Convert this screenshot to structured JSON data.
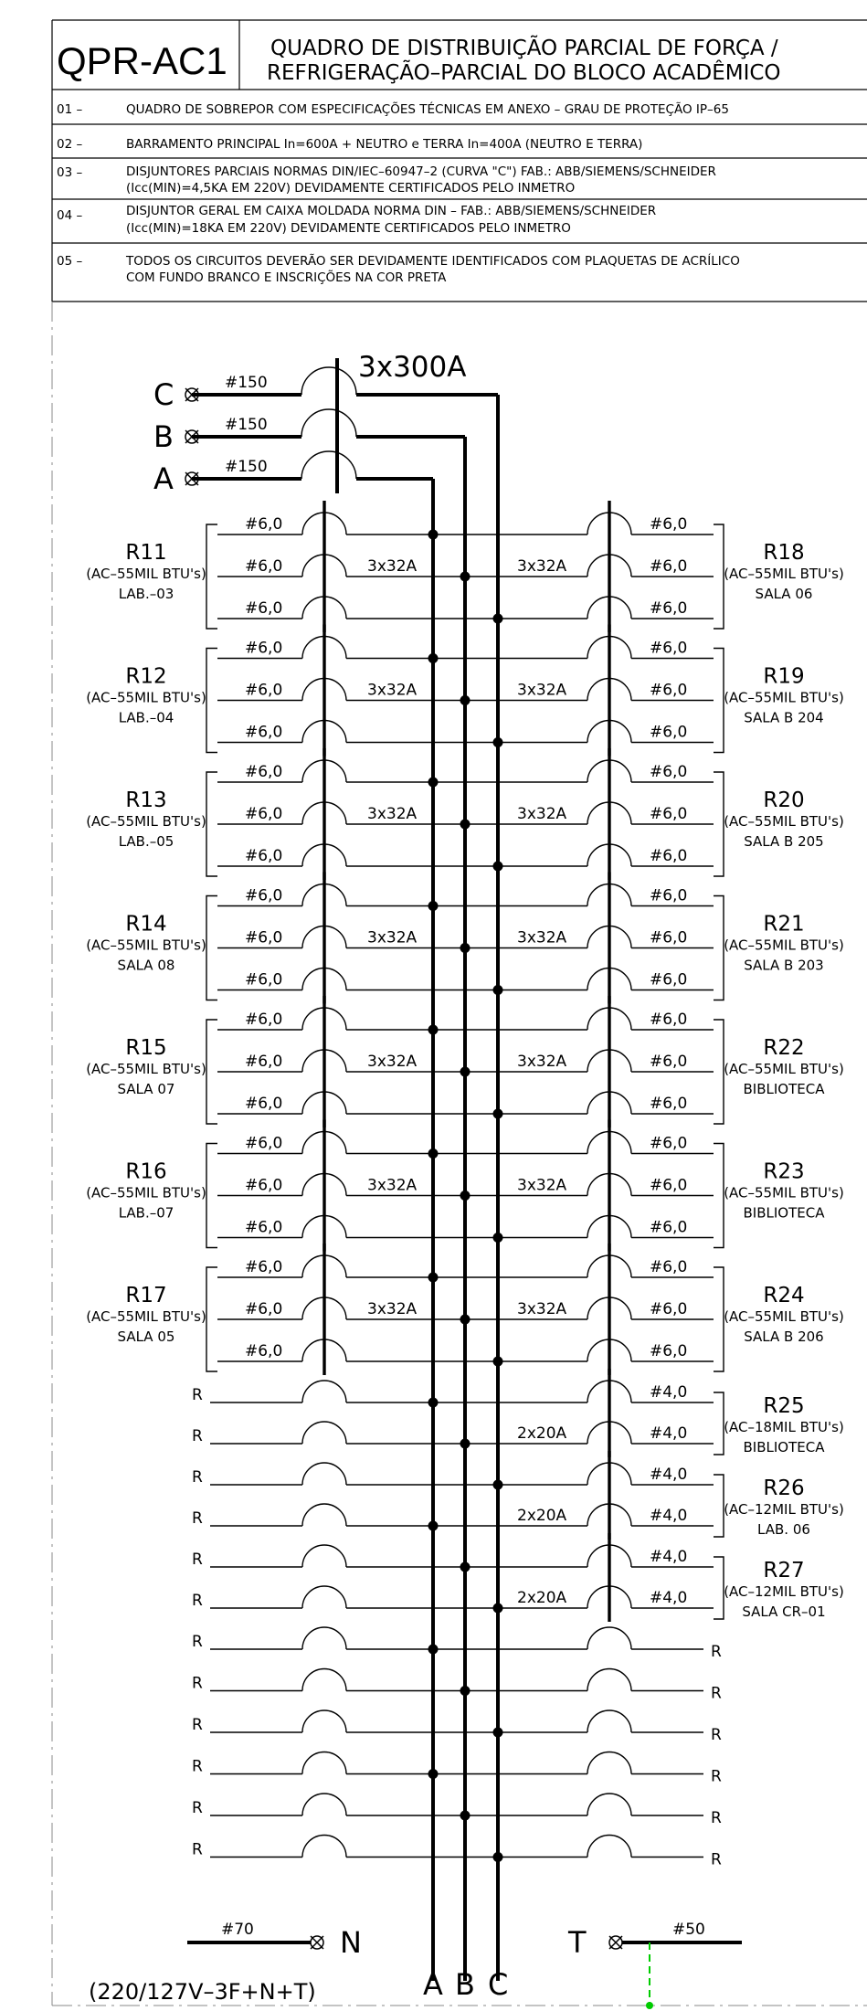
{
  "header": {
    "code": "QPR-AC1",
    "title_line1": "QUADRO DE DISTRIBUIÇÃO PARCIAL DE FORÇA /",
    "title_line2": "REFRIGERAÇÃO–PARCIAL DO BLOCO ACADÊMICO"
  },
  "notes": [
    {
      "num": "01 –",
      "lines": [
        "QUADRO DE SOBREPOR COM ESPECIFICAÇÕES TÉCNICAS EM ANEXO – GRAU DE PROTEÇÃO IP–65"
      ]
    },
    {
      "num": "02 –",
      "lines": [
        "BARRAMENTO PRINCIPAL In=600A + NEUTRO e TERRA In=400A (NEUTRO E TERRA)"
      ]
    },
    {
      "num": "03 –",
      "lines": [
        "DISJUNTORES PARCIAIS NORMAS DIN/IEC–60947–2 (CURVA \"C\") FAB.: ABB/SIEMENS/SCHNEIDER",
        "(Icc(MIN)=4,5KA EM 220V) DEVIDAMENTE CERTIFICADOS PELO INMETRO"
      ]
    },
    {
      "num": "04 –",
      "lines": [
        "DISJUNTOR GERAL EM CAIXA MOLDADA NORMA DIN – FAB.: ABB/SIEMENS/SCHNEIDER",
        "(Icc(MIN)=18KA EM 220V) DEVIDAMENTE CERTIFICADOS PELO INMETRO"
      ]
    },
    {
      "num": "05 –",
      "lines": [
        "TODOS OS CIRCUITOS DEVERÃO SER DEVIDAMENTE IDENTIFICADOS COM PLAQUETAS DE ACRÍLICO",
        "COM FUNDO BRANCO E INSCRIÇÕES NA COR PRETA"
      ]
    }
  ],
  "main": {
    "breaker": "3x300A",
    "phases": [
      {
        "label": "C",
        "cable": "#150"
      },
      {
        "label": "B",
        "cable": "#150"
      },
      {
        "label": "A",
        "cable": "#150"
      }
    ],
    "bus_labels": [
      "A",
      "B",
      "C"
    ]
  },
  "left_circuits": [
    {
      "id": "R11",
      "desc": "(AC–55MIL BTU's)",
      "loc": "LAB.–03",
      "cable": "#6,0",
      "breaker": "3x32A"
    },
    {
      "id": "R12",
      "desc": "(AC–55MIL BTU's)",
      "loc": "LAB.–04",
      "cable": "#6,0",
      "breaker": "3x32A"
    },
    {
      "id": "R13",
      "desc": "(AC–55MIL BTU's)",
      "loc": "LAB.–05",
      "cable": "#6,0",
      "breaker": "3x32A"
    },
    {
      "id": "R14",
      "desc": "(AC–55MIL BTU's)",
      "loc": "SALA 08",
      "cable": "#6,0",
      "breaker": "3x32A"
    },
    {
      "id": "R15",
      "desc": "(AC–55MIL BTU's)",
      "loc": "SALA 07",
      "cable": "#6,0",
      "breaker": "3x32A"
    },
    {
      "id": "R16",
      "desc": "(AC–55MIL BTU's)",
      "loc": "LAB.–07",
      "cable": "#6,0",
      "breaker": "3x32A"
    },
    {
      "id": "R17",
      "desc": "(AC–55MIL BTU's)",
      "loc": "SALA 05",
      "cable": "#6,0",
      "breaker": "3x32A"
    }
  ],
  "right_circuits": [
    {
      "id": "R18",
      "desc": "(AC–55MIL BTU's)",
      "loc": "SALA 06",
      "cable": "#6,0",
      "breaker": "3x32A"
    },
    {
      "id": "R19",
      "desc": "(AC–55MIL BTU's)",
      "loc": "SALA B 204",
      "cable": "#6,0",
      "breaker": "3x32A"
    },
    {
      "id": "R20",
      "desc": "(AC–55MIL BTU's)",
      "loc": "SALA B 205",
      "cable": "#6,0",
      "breaker": "3x32A"
    },
    {
      "id": "R21",
      "desc": "(AC–55MIL BTU's)",
      "loc": "SALA B 203",
      "cable": "#6,0",
      "breaker": "3x32A"
    },
    {
      "id": "R22",
      "desc": "(AC–55MIL BTU's)",
      "loc": "BIBLIOTECA",
      "cable": "#6,0",
      "breaker": "3x32A"
    },
    {
      "id": "R23",
      "desc": "(AC–55MIL BTU's)",
      "loc": "BIBLIOTECA",
      "cable": "#6,0",
      "breaker": "3x32A"
    },
    {
      "id": "R24",
      "desc": "(AC–55MIL BTU's)",
      "loc": "SALA B 206",
      "cable": "#6,0",
      "breaker": "3x32A"
    }
  ],
  "right_2pole": [
    {
      "id": "R25",
      "desc": "(AC–18MIL BTU's)",
      "loc": "BIBLIOTECA",
      "cable": "#4,0",
      "breaker": "2x20A"
    },
    {
      "id": "R26",
      "desc": "(AC–12MIL BTU's)",
      "loc": "LAB. 06",
      "cable": "#4,0",
      "breaker": "2x20A"
    },
    {
      "id": "R27",
      "desc": "(AC–12MIL BTU's)",
      "loc": "SALA CR–01",
      "cable": "#4,0",
      "breaker": "2x20A"
    }
  ],
  "reserve_label": "R",
  "neutral": {
    "cable": "#70",
    "label": "N"
  },
  "earth": {
    "cable": "#50",
    "label": "T"
  },
  "system_voltage": "(220/127V–3F+N+T)",
  "colors": {
    "line": "#000000",
    "earth_wire": "#00cc00",
    "frame": "#888888"
  }
}
